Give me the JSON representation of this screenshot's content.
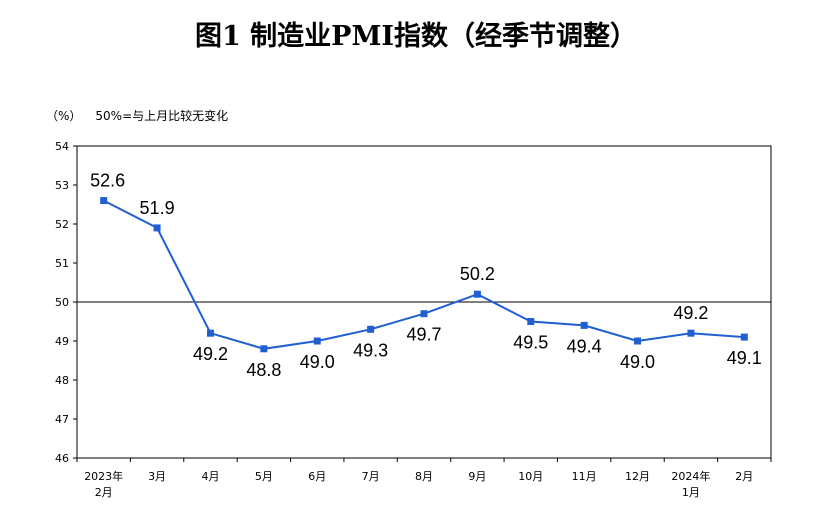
{
  "header": {
    "title": "图1  制造业PMI指数（经季节调整）",
    "unit": "（%）",
    "note": "50%=与上月比较无变化"
  },
  "chart_data": {
    "type": "line",
    "title": "图1  制造业PMI指数（经季节调整）",
    "ylabel": "（%）",
    "xlabel": "",
    "ylim": [
      46,
      54
    ],
    "yticks": [
      46,
      47,
      48,
      49,
      50,
      51,
      52,
      53,
      54
    ],
    "reference_line": 50,
    "grid": false,
    "categories": [
      [
        "2023年",
        "2月"
      ],
      [
        "3月"
      ],
      [
        "4月"
      ],
      [
        "5月"
      ],
      [
        "6月"
      ],
      [
        "7月"
      ],
      [
        "8月"
      ],
      [
        "9月"
      ],
      [
        "10月"
      ],
      [
        "11月"
      ],
      [
        "12月"
      ],
      [
        "2024年",
        "1月"
      ],
      [
        "2月"
      ]
    ],
    "series": [
      {
        "color": "#1f5fd1",
        "values": [
          52.6,
          51.9,
          49.2,
          48.8,
          49.0,
          49.3,
          49.7,
          50.2,
          49.5,
          49.4,
          49.0,
          49.2,
          49.1
        ],
        "labels": [
          "52.6",
          "51.9",
          "49.2",
          "48.8",
          "49.0",
          "49.3",
          "49.7",
          "50.2",
          "49.5",
          "49.4",
          "49.0",
          "49.2",
          "49.1"
        ]
      }
    ]
  }
}
